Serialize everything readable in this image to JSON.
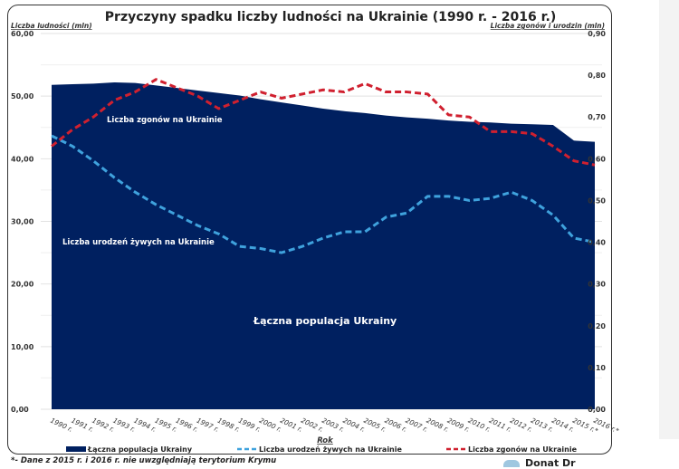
{
  "chart_data": {
    "type": "area",
    "title": "Przyczyny spadku liczby ludności na Ukrainie (1990 r. - 2016 r.)",
    "xlabel": "Rok",
    "ylabel": "Liczba ludności (mln)",
    "y2label": "Liczba zgonów i urodzin (mln)",
    "ylim": [
      0,
      60
    ],
    "y2lim": [
      0,
      0.9
    ],
    "yticks": [
      "0,00",
      "10,00",
      "20,00",
      "30,00",
      "40,00",
      "50,00",
      "60,00"
    ],
    "y2ticks": [
      "0,00",
      "0,10",
      "0,20",
      "0,30",
      "0,40",
      "0,50",
      "0,60",
      "0,70",
      "0,80",
      "0,90"
    ],
    "grid": true,
    "legend_position": "bottom",
    "categories": [
      "1990 r.",
      "1991 r.",
      "1992 r.",
      "1993 r.",
      "1994 r.",
      "1995 r.",
      "1996 r.",
      "1997 r.",
      "1998 r.",
      "1999 r.",
      "2000 r.",
      "2001 r.",
      "2002 r.",
      "2003 r.",
      "2004 r.",
      "2005 r.",
      "2006 r.",
      "2007 r.",
      "2008 r.",
      "2009 r.",
      "2010 r.",
      "2011 r.",
      "2012 r.",
      "2013 r.",
      "2014 r.",
      "2015 r.*",
      "2016 r.*"
    ],
    "series": [
      {
        "name": "Łączna populacja Ukrainy",
        "type": "area",
        "axis": "left",
        "color": "#002060",
        "values": [
          51.8,
          51.9,
          52.0,
          52.2,
          52.1,
          51.7,
          51.3,
          50.9,
          50.5,
          50.1,
          49.5,
          49.0,
          48.5,
          48.0,
          47.6,
          47.3,
          46.9,
          46.6,
          46.4,
          46.1,
          45.9,
          45.8,
          45.6,
          45.5,
          45.4,
          42.9,
          42.7
        ]
      },
      {
        "name": "Liczba urodzeń żywych na Ukrainie",
        "type": "line",
        "axis": "right",
        "color": "#3fa2dd",
        "values": [
          0.655,
          0.63,
          0.595,
          0.555,
          0.52,
          0.49,
          0.465,
          0.44,
          0.42,
          0.39,
          0.385,
          0.375,
          0.39,
          0.41,
          0.425,
          0.425,
          0.46,
          0.47,
          0.51,
          0.51,
          0.5,
          0.505,
          0.52,
          0.5,
          0.465,
          0.41,
          0.4
        ]
      },
      {
        "name": "Liczba zgonów na Ukrainie",
        "type": "line",
        "axis": "right",
        "color": "#d0202f",
        "values": [
          0.63,
          0.67,
          0.7,
          0.74,
          0.76,
          0.79,
          0.77,
          0.75,
          0.72,
          0.74,
          0.76,
          0.745,
          0.755,
          0.765,
          0.76,
          0.78,
          0.76,
          0.76,
          0.755,
          0.705,
          0.7,
          0.665,
          0.665,
          0.66,
          0.63,
          0.595,
          0.585
        ]
      }
    ],
    "annotations": {
      "deaths": "Liczba zgonów na Ukrainie",
      "births": "Liczba urodzeń żywych na Ukrainie",
      "population": "Łączna populacja Ukrainy"
    }
  },
  "footnote": "*- Dane z 2015 r. i 2016 r. nie uwzględniają terytorium Krymu",
  "logo_text": "Donat Dr"
}
